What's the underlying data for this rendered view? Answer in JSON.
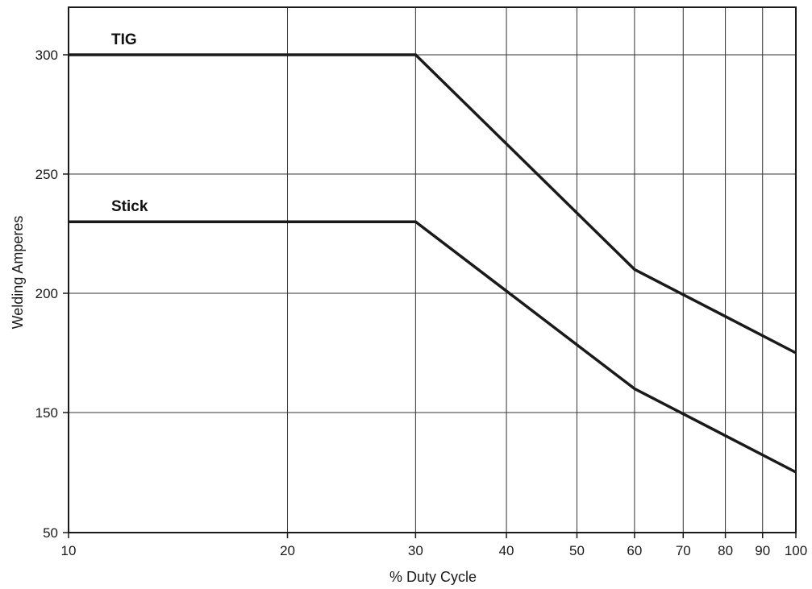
{
  "chart_data": {
    "type": "line",
    "xlabel": "% Duty Cycle",
    "ylabel": "Welding Amperes",
    "xscale": "log",
    "xlim": [
      10,
      100
    ],
    "ylim": [
      50,
      320
    ],
    "grid": true,
    "x_ticks": [
      10,
      20,
      30,
      40,
      50,
      60,
      70,
      80,
      90,
      100
    ],
    "x_tick_labels": [
      "10",
      "20",
      "30",
      "40",
      "50",
      "60",
      "70",
      "80",
      "90",
      "100"
    ],
    "y_ticks": [
      50,
      150,
      200,
      250,
      300
    ],
    "y_tick_labels": [
      "50",
      "150",
      "200",
      "250",
      "300"
    ],
    "series": [
      {
        "name": "TIG",
        "x": [
          10,
          30,
          60,
          100
        ],
        "y": [
          300,
          300,
          210,
          175
        ],
        "color": "#1a1a1a"
      },
      {
        "name": "Stick",
        "x": [
          10,
          30,
          60,
          100
        ],
        "y": [
          230,
          230,
          160,
          125
        ],
        "color": "#1a1a1a"
      }
    ]
  }
}
